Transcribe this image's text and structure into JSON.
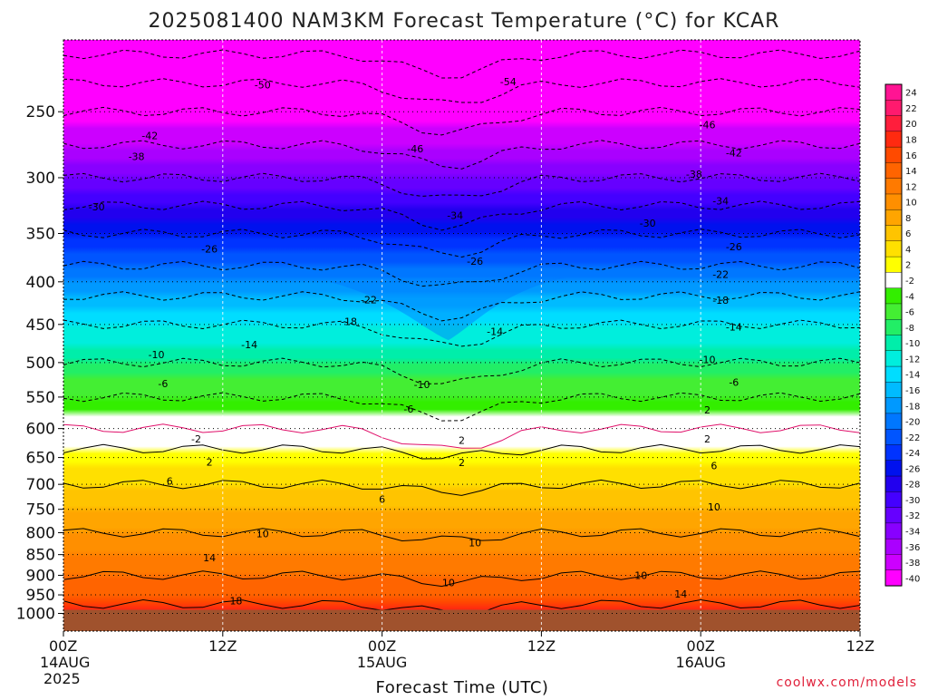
{
  "chart_data": {
    "type": "heatmap",
    "title": "2025081400 NAM3KM Forecast Temperature (°C) for KCAR",
    "xlabel": "Forecast Time (UTC)",
    "ylabel": "",
    "credit": "coolwx.com/models",
    "y_scale": "log-pressure",
    "ylim": [
      1050,
      205
    ],
    "x_ticks": [
      {
        "hour": 0,
        "label": "00Z",
        "sub1": "14AUG",
        "sub2": "2025"
      },
      {
        "hour": 12,
        "label": "12Z",
        "sub1": "",
        "sub2": ""
      },
      {
        "hour": 24,
        "label": "00Z",
        "sub1": "15AUG",
        "sub2": ""
      },
      {
        "hour": 36,
        "label": "12Z",
        "sub1": "",
        "sub2": ""
      },
      {
        "hour": 48,
        "label": "00Z",
        "sub1": "16AUG",
        "sub2": ""
      },
      {
        "hour": 60,
        "label": "12Z",
        "sub1": "",
        "sub2": ""
      }
    ],
    "y_ticks": [
      {
        "p": 250,
        "label": "250"
      },
      {
        "p": 300,
        "label": "300"
      },
      {
        "p": 350,
        "label": "350"
      },
      {
        "p": 400,
        "label": "400"
      },
      {
        "p": 450,
        "label": "450"
      },
      {
        "p": 500,
        "label": "500"
      },
      {
        "p": 550,
        "label": "550"
      },
      {
        "p": 600,
        "label": "600"
      },
      {
        "p": 650,
        "label": "650"
      },
      {
        "p": 700,
        "label": "700"
      },
      {
        "p": 750,
        "label": "750"
      },
      {
        "p": 800,
        "label": "800"
      },
      {
        "p": 850,
        "label": "850"
      },
      {
        "p": 900,
        "label": "900"
      },
      {
        "p": 950,
        "label": "950"
      },
      {
        "p": 1000,
        "label": "1000"
      }
    ],
    "grid": true,
    "ground_pressure": 990,
    "ground_color": "#a0522d",
    "colorbar": [
      {
        "label": "24",
        "color": "#ff1493"
      },
      {
        "label": "22",
        "color": "#ff1a6e"
      },
      {
        "label": "20",
        "color": "#ff1e3c"
      },
      {
        "label": "18",
        "color": "#ff2a10"
      },
      {
        "label": "16",
        "color": "#ff4a00"
      },
      {
        "label": "14",
        "color": "#ff6400"
      },
      {
        "label": "12",
        "color": "#ff7a00"
      },
      {
        "label": "10",
        "color": "#ff8f00"
      },
      {
        "label": "8",
        "color": "#ffa500"
      },
      {
        "label": "6",
        "color": "#ffc400"
      },
      {
        "label": "4",
        "color": "#ffe000"
      },
      {
        "label": "2",
        "color": "#ffff00"
      },
      {
        "label": "-2",
        "color": "#ffffff"
      },
      {
        "label": "-4",
        "color": "#33ee00"
      },
      {
        "label": "-6",
        "color": "#44ee33"
      },
      {
        "label": "-8",
        "color": "#22ee66"
      },
      {
        "label": "-10",
        "color": "#00eeaa"
      },
      {
        "label": "-12",
        "color": "#00eedd"
      },
      {
        "label": "-14",
        "color": "#00ddff"
      },
      {
        "label": "-16",
        "color": "#00bbff"
      },
      {
        "label": "-18",
        "color": "#0099ff"
      },
      {
        "label": "-20",
        "color": "#0077ff"
      },
      {
        "label": "-22",
        "color": "#0055ff"
      },
      {
        "label": "-24",
        "color": "#0033ff"
      },
      {
        "label": "-26",
        "color": "#0011ee"
      },
      {
        "label": "-28",
        "color": "#2200ee"
      },
      {
        "label": "-30",
        "color": "#4400ff"
      },
      {
        "label": "-32",
        "color": "#6600ff"
      },
      {
        "label": "-34",
        "color": "#8800ff"
      },
      {
        "label": "-36",
        "color": "#aa00ff"
      },
      {
        "label": "-38",
        "color": "#cc00ff"
      },
      {
        "label": "-40",
        "color": "#ff00ff"
      }
    ],
    "profile_points": [
      {
        "p": 1000,
        "t": 20
      },
      {
        "p": 950,
        "t": 16
      },
      {
        "p": 900,
        "t": 14
      },
      {
        "p": 850,
        "t": 12
      },
      {
        "p": 800,
        "t": 10
      },
      {
        "p": 750,
        "t": 8
      },
      {
        "p": 700,
        "t": 6
      },
      {
        "p": 650,
        "t": 3
      },
      {
        "p": 620,
        "t": 1
      },
      {
        "p": 600,
        "t": -2
      },
      {
        "p": 550,
        "t": -6
      },
      {
        "p": 500,
        "t": -10
      },
      {
        "p": 450,
        "t": -14
      },
      {
        "p": 400,
        "t": -20
      },
      {
        "p": 350,
        "t": -26
      },
      {
        "p": 300,
        "t": -34
      },
      {
        "p": 250,
        "t": -42
      },
      {
        "p": 205,
        "t": -52
      }
    ],
    "contour_labels": [
      {
        "text": "-50",
        "hour": 15,
        "p": 232
      },
      {
        "text": "-54",
        "hour": 33.5,
        "p": 230
      },
      {
        "text": "-42",
        "hour": 6.5,
        "p": 267
      },
      {
        "text": "-46",
        "hour": 26.5,
        "p": 277
      },
      {
        "text": "-46",
        "hour": 48.5,
        "p": 259
      },
      {
        "text": "-38",
        "hour": 5.5,
        "p": 283
      },
      {
        "text": "-42",
        "hour": 50.5,
        "p": 280
      },
      {
        "text": "-38",
        "hour": 47.5,
        "p": 297
      },
      {
        "text": "-30",
        "hour": 2.5,
        "p": 325
      },
      {
        "text": "-34",
        "hour": 29.5,
        "p": 333
      },
      {
        "text": "-34",
        "hour": 49.5,
        "p": 320
      },
      {
        "text": "-30",
        "hour": 44,
        "p": 340
      },
      {
        "text": "-26",
        "hour": 11,
        "p": 365
      },
      {
        "text": "-26",
        "hour": 31,
        "p": 378
      },
      {
        "text": "-26",
        "hour": 50.5,
        "p": 363
      },
      {
        "text": "-22",
        "hour": 23,
        "p": 420
      },
      {
        "text": "-22",
        "hour": 49.5,
        "p": 392
      },
      {
        "text": "-18",
        "hour": 49.5,
        "p": 421
      },
      {
        "text": "-18",
        "hour": 21.5,
        "p": 446
      },
      {
        "text": "-14",
        "hour": 14,
        "p": 476
      },
      {
        "text": "-14",
        "hour": 32.5,
        "p": 459
      },
      {
        "text": "-14",
        "hour": 50.5,
        "p": 453
      },
      {
        "text": "-10",
        "hour": 7,
        "p": 489
      },
      {
        "text": "-10",
        "hour": 27,
        "p": 531
      },
      {
        "text": "-10",
        "hour": 48.5,
        "p": 496
      },
      {
        "text": "-6",
        "hour": 7.5,
        "p": 530
      },
      {
        "text": "-6",
        "hour": 50.5,
        "p": 528
      },
      {
        "text": "-6",
        "hour": 26,
        "p": 568
      },
      {
        "text": "2",
        "hour": 48.5,
        "p": 570
      },
      {
        "text": "-2",
        "hour": 10,
        "p": 617
      },
      {
        "text": "2",
        "hour": 30,
        "p": 620
      },
      {
        "text": "2",
        "hour": 48.5,
        "p": 617
      },
      {
        "text": "2",
        "hour": 11,
        "p": 658
      },
      {
        "text": "2",
        "hour": 30,
        "p": 659
      },
      {
        "text": "6",
        "hour": 8,
        "p": 694
      },
      {
        "text": "6",
        "hour": 49,
        "p": 665
      },
      {
        "text": "6",
        "hour": 24,
        "p": 729
      },
      {
        "text": "10",
        "hour": 49,
        "p": 745
      },
      {
        "text": "10",
        "hour": 15,
        "p": 802
      },
      {
        "text": "10",
        "hour": 31,
        "p": 822
      },
      {
        "text": "14",
        "hour": 11,
        "p": 857
      },
      {
        "text": "10",
        "hour": 29,
        "p": 918
      },
      {
        "text": "10",
        "hour": 43.5,
        "p": 900
      },
      {
        "text": "14",
        "hour": 46.5,
        "p": 948
      },
      {
        "text": "18",
        "hour": 13,
        "p": 965
      }
    ]
  }
}
